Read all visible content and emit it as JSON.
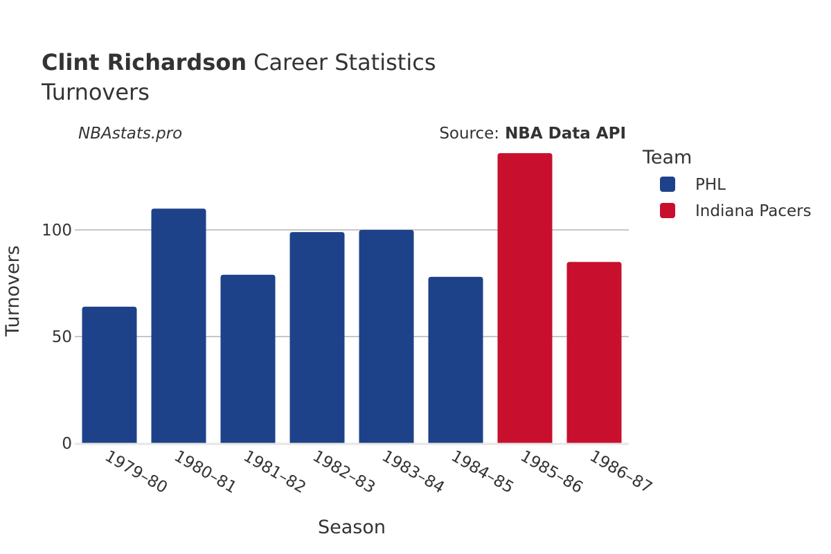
{
  "chart_data": {
    "type": "bar",
    "title_bold": "Clint Richardson",
    "title_rest": "Career Statistics",
    "subtitle": "Turnovers",
    "watermark": "NBAstats.pro",
    "source_prefix": "Source:",
    "source_name": "NBA Data API",
    "xlabel": "Season",
    "ylabel": "Turnovers",
    "ylim": [
      0,
      138
    ],
    "yticks": [
      0,
      50,
      100
    ],
    "grid": true,
    "legend_title": "Team",
    "legend_position": "top-right",
    "categories": [
      "1979–80",
      "1980–81",
      "1981–82",
      "1982–83",
      "1983–84",
      "1984–85",
      "1985–86",
      "1986–87"
    ],
    "series": [
      {
        "name": "PHL",
        "color": "#1d428a",
        "values": [
          64,
          110,
          79,
          99,
          100,
          78,
          null,
          null
        ]
      },
      {
        "name": "Indiana Pacers",
        "color": "#c8102e",
        "values": [
          null,
          null,
          null,
          null,
          null,
          null,
          136,
          85
        ]
      }
    ]
  }
}
